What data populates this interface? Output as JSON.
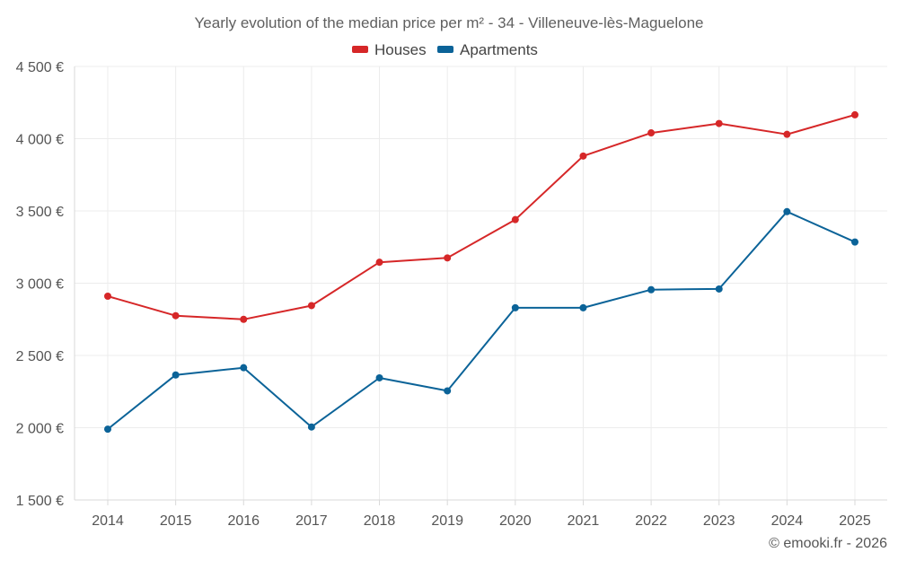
{
  "chart_data": {
    "type": "line",
    "title": "Yearly evolution of the median price per m² - 34 - Villeneuve-lès-Maguelone",
    "categories": [
      "2014",
      "2015",
      "2016",
      "2017",
      "2018",
      "2019",
      "2020",
      "2021",
      "2022",
      "2023",
      "2024",
      "2025"
    ],
    "series": [
      {
        "name": "Houses",
        "color": "#d62728",
        "values": [
          2910,
          2775,
          2750,
          2845,
          3145,
          3175,
          3440,
          3880,
          4040,
          4105,
          4030,
          4165
        ]
      },
      {
        "name": "Apartments",
        "color": "#0b6398",
        "values": [
          1990,
          2365,
          2415,
          2005,
          2345,
          2255,
          2830,
          2830,
          2955,
          2960,
          3495,
          3285
        ]
      }
    ],
    "ylim": [
      1500,
      4500
    ],
    "yticks": [
      1500,
      2000,
      2500,
      3000,
      3500,
      4000,
      4500
    ],
    "ytick_labels": [
      "1 500 €",
      "2 000 €",
      "2 500 €",
      "3 000 €",
      "3 500 €",
      "4 000 €",
      "4 500 €"
    ],
    "xlabel": "",
    "ylabel": "",
    "grid": true,
    "legend_position": "top-center"
  },
  "footer": {
    "credit": "© emooki.fr - 2026"
  }
}
